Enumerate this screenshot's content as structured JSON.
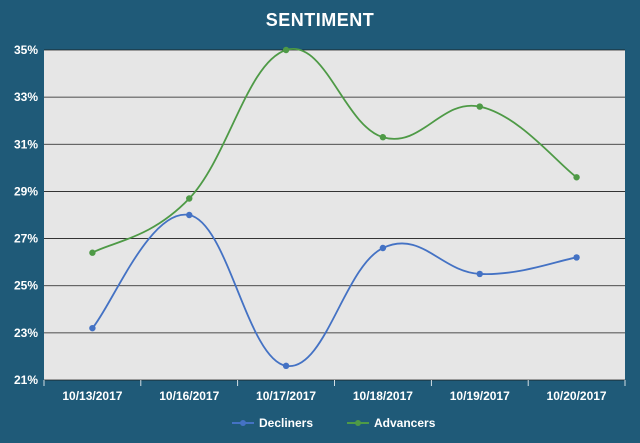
{
  "chart_data": {
    "type": "line",
    "title": "SENTIMENT",
    "categories": [
      "10/13/2017",
      "10/16/2017",
      "10/17/2017",
      "10/18/2017",
      "10/19/2017",
      "10/20/2017"
    ],
    "series": [
      {
        "name": "Decliners",
        "color": "#4472c4",
        "values": [
          23.2,
          28.0,
          21.6,
          26.6,
          25.5,
          26.2
        ]
      },
      {
        "name": "Advancers",
        "color": "#4e9a46",
        "values": [
          26.4,
          28.7,
          35.0,
          31.3,
          32.6,
          29.6
        ]
      }
    ],
    "y_ticks": [
      "21%",
      "23%",
      "25%",
      "27%",
      "29%",
      "31%",
      "33%",
      "35%"
    ],
    "ylim": [
      21,
      35
    ],
    "smooth": true,
    "grid": true,
    "legend_position": "bottom",
    "colors": {
      "background": "#1f5a78",
      "plot_area": "#e6e6e6",
      "text": "#ffffff",
      "gridline": "#1a1a1a"
    }
  }
}
